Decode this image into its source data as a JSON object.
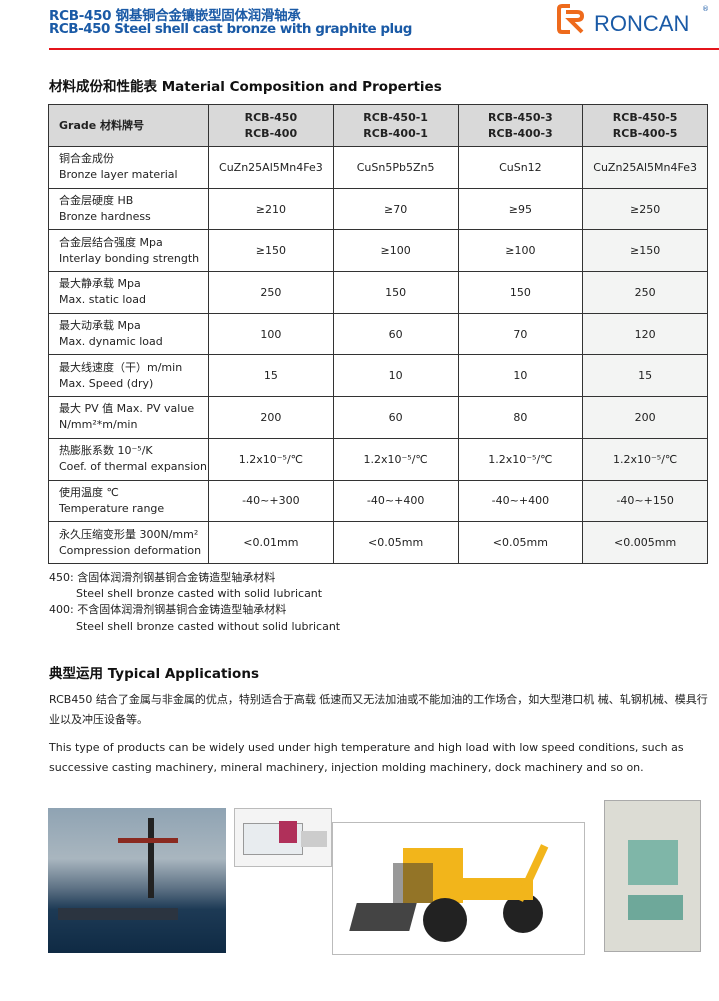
{
  "header": {
    "title_cn": "RCB-450 钢基铜合金镶嵌型固体润滑轴承",
    "title_en": "RCB-450 Steel shell cast bronze with graphite plug",
    "logo_text": "RONCAN",
    "logo_reg": "®",
    "accent_color": "#1a5aa6",
    "line_color": "#e4141b",
    "logo_mark_color": "#ee6a1c"
  },
  "section1": {
    "title": "材料成份和性能表 Material Composition and Properties"
  },
  "table": {
    "header": {
      "first": "Grade 材料牌号",
      "grades": [
        [
          "RCB-450",
          "RCB-400"
        ],
        [
          "RCB-450-1",
          "RCB-400-1"
        ],
        [
          "RCB-450-3",
          "RCB-400-3"
        ],
        [
          "RCB-450-5",
          "RCB-400-5"
        ]
      ]
    },
    "rows": [
      {
        "cn": "铜合金成份",
        "en": "Bronze layer material",
        "values": [
          "CuZn25Al5Mn4Fe3",
          "CuSn5Pb5Zn5",
          "CuSn12",
          "CuZn25Al5Mn4Fe3"
        ]
      },
      {
        "cn": "合金层硬度 HB",
        "en": "Bronze hardness",
        "values": [
          "≥210",
          "≥70",
          "≥95",
          "≥250"
        ]
      },
      {
        "cn": "合金层结合强度 Mpa",
        "en": "Interlay bonding strength",
        "values": [
          "≥150",
          "≥100",
          "≥100",
          "≥150"
        ]
      },
      {
        "cn": "最大静承载 Mpa",
        "en": "Max. static load",
        "values": [
          "250",
          "150",
          "150",
          "250"
        ]
      },
      {
        "cn": "最大动承载 Mpa",
        "en": "Max. dynamic load",
        "values": [
          "100",
          "60",
          "70",
          "120"
        ]
      },
      {
        "cn": "最大线速度（干）m/min",
        "en": "Max. Speed (dry)",
        "values": [
          "15",
          "10",
          "10",
          "15"
        ]
      },
      {
        "cn": "最大 PV 值 Max. PV value",
        "en": "N/mm²*m/min",
        "values": [
          "200",
          "60",
          "80",
          "200"
        ]
      },
      {
        "cn": "热膨胀系数 10⁻⁵/K",
        "en": "Coef. of thermal expansion",
        "values": [
          "1.2x10⁻⁵/℃",
          "1.2x10⁻⁵/℃",
          "1.2x10⁻⁵/℃",
          "1.2x10⁻⁵/℃"
        ]
      },
      {
        "cn": "使用温度 ℃",
        "en": "Temperature range",
        "values": [
          "-40~+300",
          "-40~+400",
          "-40~+400",
          "-40~+150"
        ]
      },
      {
        "cn": "永久压缩变形量 300N/mm²",
        "en": "Compression deformation",
        "values": [
          "<0.01mm",
          "<0.05mm",
          "<0.05mm",
          "<0.005mm"
        ]
      }
    ]
  },
  "notes": {
    "n450_cn": "450: 含固体润滑剂钢基铜合金铸造型轴承材料",
    "n450_en": "Steel shell bronze casted with solid lubricant",
    "n400_cn": "400: 不含固体润滑剂钢基铜合金铸造型轴承材料",
    "n400_en": "Steel shell bronze casted without solid lubricant"
  },
  "section2": {
    "title": "典型运用 Typical Applications",
    "para_cn": "RCB450 结合了金属与非金属的优点，特别适合于高载 低速而又无法加油或不能加油的工作场合，如大型港口机 械、轧钢机械、模具行业以及冲压设备等。",
    "para_en": "This type of products can be widely used under high temperature and high load with low speed conditions, such as successive casting machinery, mineral machinery, injection molding machinery, dock machinery and so on."
  },
  "images": [
    "harbor-crane-photo",
    "injection-molding-machine-photo",
    "backhoe-loader-photo",
    "punch-press-photo"
  ]
}
